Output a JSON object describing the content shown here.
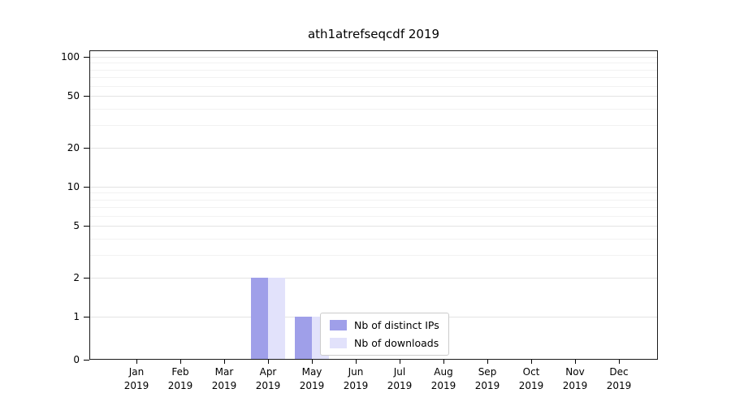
{
  "title": "ath1atrefseqcdf 2019",
  "chart_data": {
    "type": "bar",
    "title": "ath1atrefseqcdf 2019",
    "categories": [
      "Jan",
      "Feb",
      "Mar",
      "Apr",
      "May",
      "Jun",
      "Jul",
      "Aug",
      "Sep",
      "Oct",
      "Nov",
      "Dec"
    ],
    "year_label": "2019",
    "series": [
      {
        "name": "Nb of distinct IPs",
        "color": "#9f9fe9",
        "values": [
          0,
          0,
          0,
          2,
          1,
          0,
          0,
          0,
          0,
          0,
          0,
          0
        ]
      },
      {
        "name": "Nb of downloads",
        "color": "#e2e2fb",
        "values": [
          0,
          0,
          0,
          2,
          1,
          0,
          0,
          0,
          0,
          0,
          0,
          0
        ]
      }
    ],
    "yticks": [
      0,
      1,
      2,
      5,
      10,
      20,
      50,
      100
    ],
    "scale": "symlog",
    "ylim": [
      0,
      100
    ],
    "grid": true,
    "legend_position": "inside-bottom-center"
  }
}
